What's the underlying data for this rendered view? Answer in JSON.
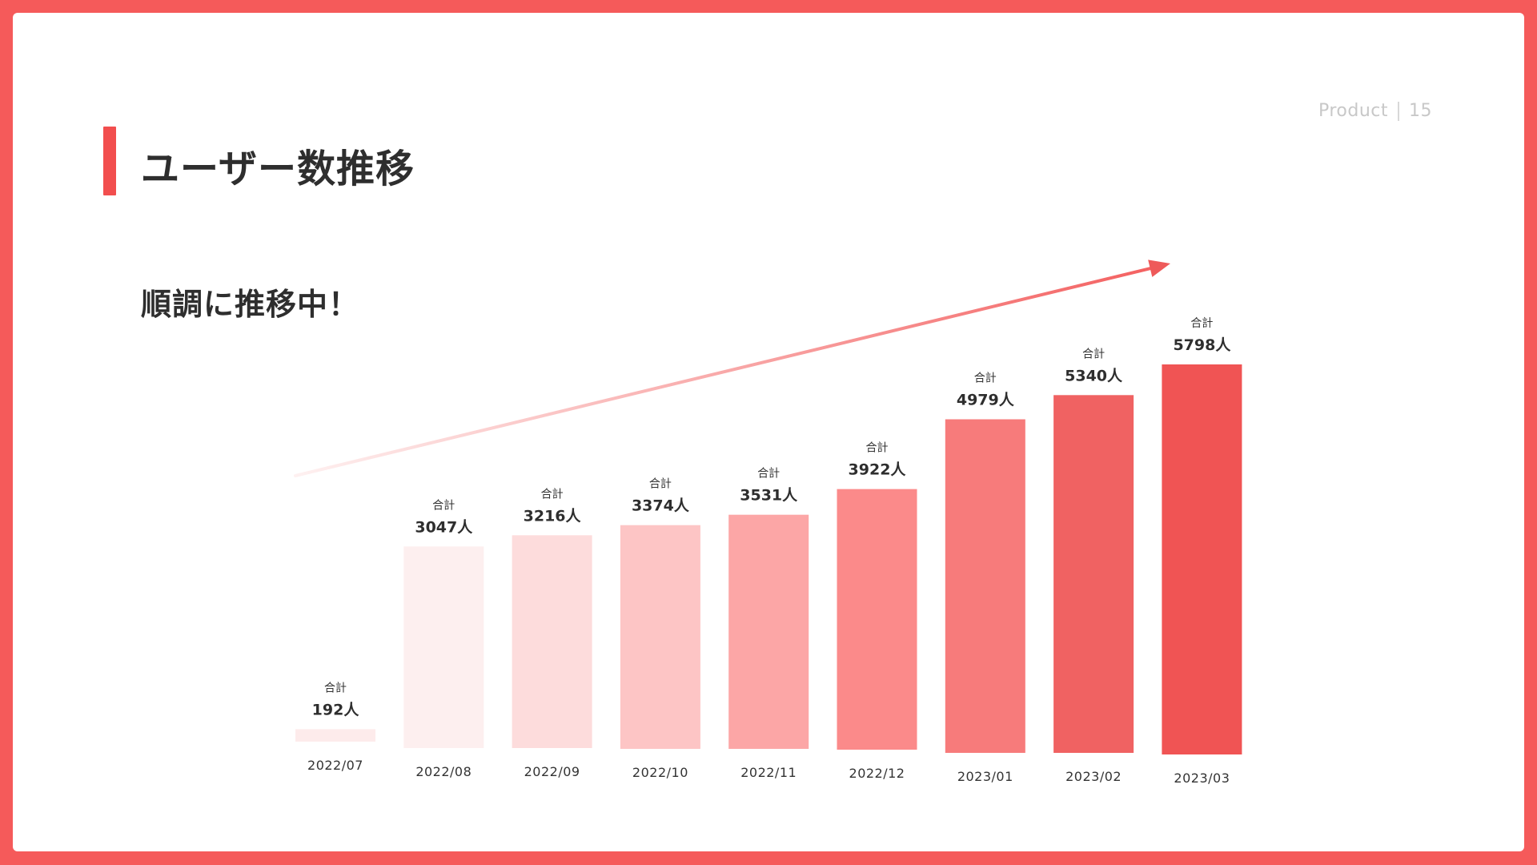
{
  "header": {
    "section": "Product",
    "page_number": "15"
  },
  "title": "ユーザー数推移",
  "subtitle": "順調に推移中！",
  "chart_data": {
    "type": "bar",
    "categories": [
      "2022/07",
      "2022/08",
      "2022/09",
      "2022/10",
      "2022/11",
      "2022/12",
      "2023/01",
      "2023/02",
      "2023/03"
    ],
    "values": [
      192,
      3047,
      3216,
      3374,
      3531,
      3922,
      4979,
      5340,
      5798
    ],
    "data_labels": [
      "192人",
      "3047人",
      "3216人",
      "3374人",
      "3531人",
      "3922人",
      "4979人",
      "5340人",
      "5798人"
    ],
    "data_label_prefix": "合計",
    "ylim": [
      0,
      5798
    ],
    "grid": false,
    "trend_arrow": true,
    "bar_colors": [
      "#FDEBEB",
      "#FDEFEF",
      "#FDDCDC",
      "#FDC5C5",
      "#FCA6A6",
      "#FB8A8A",
      "#F77B7B",
      "#F06262",
      "#F05454"
    ],
    "accent_color": "#F24E4E"
  }
}
